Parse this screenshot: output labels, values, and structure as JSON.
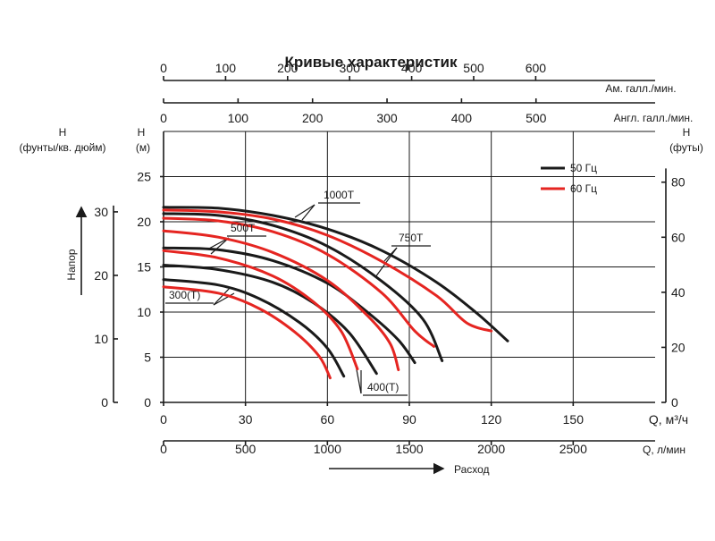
{
  "chart_data": {
    "type": "line",
    "title": "Кривые характеристик",
    "x_primary": {
      "label": "Q, м³/ч",
      "ticks": [
        0,
        30,
        60,
        90,
        120,
        150
      ],
      "range": [
        0,
        180
      ]
    },
    "x_secondary": [
      {
        "label": "Q, л/мин",
        "ticks": [
          0,
          500,
          1000,
          1500,
          2000,
          2500
        ],
        "factor": 16.667
      },
      {
        "label": "Ам. галл./мин.",
        "ticks": [
          0,
          100,
          200,
          300,
          400,
          500,
          600
        ],
        "factor": 4.403
      },
      {
        "label": "Англ. галл./мин.",
        "ticks": [
          0,
          100,
          200,
          300,
          400,
          500
        ],
        "factor": 3.666
      }
    ],
    "flow_arrow_label": "Расход",
    "head_arrow_label": "Напор",
    "y_primary": {
      "label_top": "H",
      "label_bottom": "(м)",
      "ticks": [
        0,
        5,
        10,
        15,
        20,
        25
      ],
      "range": [
        0,
        30
      ]
    },
    "y_left_psi": {
      "label_top": "H",
      "label_bottom": "(фунты/кв. дюйм)",
      "ticks": [
        0,
        10,
        20,
        30
      ],
      "factor": 1.422
    },
    "y_right_ft": {
      "label_top": "H",
      "label_bottom": "(футы)",
      "ticks": [
        0,
        20,
        40,
        60,
        80
      ],
      "factor": 3.281
    },
    "legend": {
      "position": "top-right",
      "entries": [
        {
          "name": "50 Гц",
          "color": "#1a1a1a"
        },
        {
          "name": "60 Гц",
          "color": "#e52521"
        }
      ]
    },
    "grid": true,
    "curve_labels": [
      "1000T",
      "750T",
      "500T",
      "400(T)",
      "300(T)"
    ],
    "series": [
      {
        "model": "1000T",
        "freq": "50 Гц",
        "color": "#1a1a1a",
        "points": [
          [
            0,
            21.6
          ],
          [
            20,
            21.5
          ],
          [
            40,
            20.7
          ],
          [
            60,
            19.2
          ],
          [
            80,
            16.8
          ],
          [
            100,
            13.3
          ],
          [
            115,
            9.8
          ],
          [
            126,
            6.8
          ]
        ]
      },
      {
        "model": "1000T",
        "freq": "60 Гц",
        "color": "#e52521",
        "points": [
          [
            0,
            21.3
          ],
          [
            20,
            21.1
          ],
          [
            40,
            20.3
          ],
          [
            60,
            18.5
          ],
          [
            80,
            15.6
          ],
          [
            100,
            11.8
          ],
          [
            111,
            8.8
          ],
          [
            120,
            7.9
          ]
        ]
      },
      {
        "model": "750T",
        "freq": "50 Гц",
        "color": "#1a1a1a",
        "points": [
          [
            0,
            20.9
          ],
          [
            20,
            20.7
          ],
          [
            40,
            19.6
          ],
          [
            60,
            17.3
          ],
          [
            80,
            13.4
          ],
          [
            95,
            9.2
          ],
          [
            102,
            4.6
          ]
        ]
      },
      {
        "model": "750T",
        "freq": "60 Гц",
        "color": "#e52521",
        "points": [
          [
            0,
            20.4
          ],
          [
            20,
            20.1
          ],
          [
            40,
            18.9
          ],
          [
            60,
            16.4
          ],
          [
            80,
            12.1
          ],
          [
            92,
            7.9
          ],
          [
            99,
            6.2
          ]
        ]
      },
      {
        "model": "500T",
        "freq": "50 Гц",
        "color": "#1a1a1a",
        "points": [
          [
            0,
            17.1
          ],
          [
            20,
            16.9
          ],
          [
            40,
            15.7
          ],
          [
            60,
            13.2
          ],
          [
            75,
            9.9
          ],
          [
            86,
            6.9
          ],
          [
            92,
            4.4
          ]
        ]
      },
      {
        "model": "500T",
        "freq": "60 Гц",
        "color": "#e52521",
        "points": [
          [
            0,
            19.0
          ],
          [
            20,
            18.3
          ],
          [
            40,
            16.6
          ],
          [
            60,
            13.5
          ],
          [
            75,
            9.5
          ],
          [
            83,
            6.5
          ],
          [
            86,
            3.6
          ]
        ]
      },
      {
        "model": "400(T)",
        "freq": "50 Гц",
        "color": "#1a1a1a",
        "points": [
          [
            0,
            15.2
          ],
          [
            20,
            14.7
          ],
          [
            40,
            13.3
          ],
          [
            55,
            11.0
          ],
          [
            68,
            7.7
          ],
          [
            78,
            3.2
          ]
        ]
      },
      {
        "model": "400(T)",
        "freq": "60 Гц",
        "color": "#e52521",
        "points": [
          [
            0,
            16.8
          ],
          [
            20,
            16.0
          ],
          [
            40,
            14.0
          ],
          [
            55,
            11.1
          ],
          [
            65,
            7.9
          ],
          [
            71,
            3.7
          ]
        ]
      },
      {
        "model": "300(T)",
        "freq": "50 Гц",
        "color": "#1a1a1a",
        "points": [
          [
            0,
            13.6
          ],
          [
            20,
            13.0
          ],
          [
            35,
            11.5
          ],
          [
            50,
            8.8
          ],
          [
            60,
            6.0
          ],
          [
            66,
            2.9
          ]
        ]
      },
      {
        "model": "300(T)",
        "freq": "60 Гц",
        "color": "#e52521",
        "points": [
          [
            0,
            12.8
          ],
          [
            20,
            12.1
          ],
          [
            35,
            10.4
          ],
          [
            48,
            7.8
          ],
          [
            57,
            5.1
          ],
          [
            61,
            2.7
          ]
        ]
      }
    ]
  }
}
